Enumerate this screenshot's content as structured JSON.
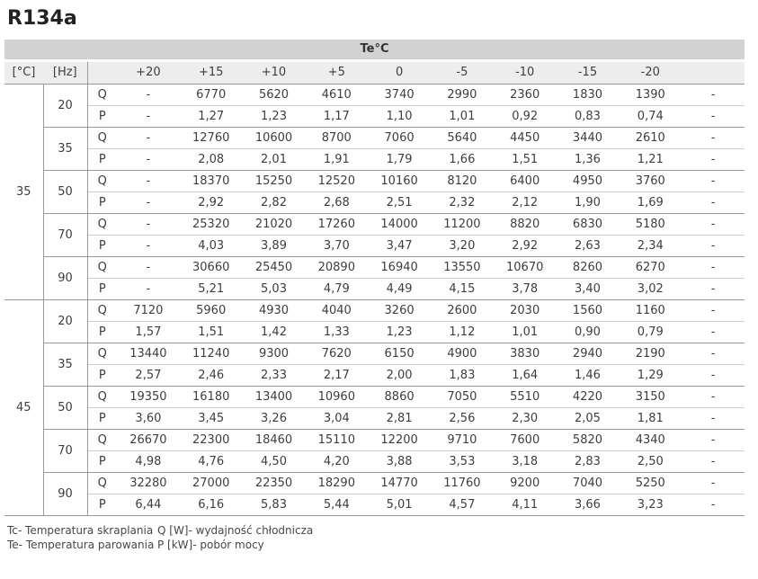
{
  "title": "R134a",
  "chart_data": {
    "type": "table",
    "title": "R134a",
    "col_group_header": "Te°C",
    "corner_headers": [
      "[°C]",
      "[Hz]"
    ],
    "te_columns": [
      "+20",
      "+15",
      "+10",
      "+5",
      "0",
      "-5",
      "-10",
      "-15",
      "-20",
      ""
    ],
    "row_metric_labels": {
      "q": "Q",
      "p": "P"
    },
    "sections": [
      {
        "tc": "35",
        "groups": [
          {
            "hz": "20",
            "q": [
              "-",
              "6770",
              "5620",
              "4610",
              "3740",
              "2990",
              "2360",
              "1830",
              "1390",
              "-"
            ],
            "p": [
              "-",
              "1,27",
              "1,23",
              "1,17",
              "1,10",
              "1,01",
              "0,92",
              "0,83",
              "0,74",
              "-"
            ]
          },
          {
            "hz": "35",
            "q": [
              "-",
              "12760",
              "10600",
              "8700",
              "7060",
              "5640",
              "4450",
              "3440",
              "2610",
              "-"
            ],
            "p": [
              "-",
              "2,08",
              "2,01",
              "1,91",
              "1,79",
              "1,66",
              "1,51",
              "1,36",
              "1,21",
              "-"
            ]
          },
          {
            "hz": "50",
            "q": [
              "-",
              "18370",
              "15250",
              "12520",
              "10160",
              "8120",
              "6400",
              "4950",
              "3760",
              "-"
            ],
            "p": [
              "-",
              "2,92",
              "2,82",
              "2,68",
              "2,51",
              "2,32",
              "2,12",
              "1,90",
              "1,69",
              "-"
            ]
          },
          {
            "hz": "70",
            "q": [
              "-",
              "25320",
              "21020",
              "17260",
              "14000",
              "11200",
              "8820",
              "6830",
              "5180",
              "-"
            ],
            "p": [
              "-",
              "4,03",
              "3,89",
              "3,70",
              "3,47",
              "3,20",
              "2,92",
              "2,63",
              "2,34",
              "-"
            ]
          },
          {
            "hz": "90",
            "q": [
              "-",
              "30660",
              "25450",
              "20890",
              "16940",
              "13550",
              "10670",
              "8260",
              "6270",
              "-"
            ],
            "p": [
              "-",
              "5,21",
              "5,03",
              "4,79",
              "4,49",
              "4,15",
              "3,78",
              "3,40",
              "3,02",
              "-"
            ]
          }
        ]
      },
      {
        "tc": "45",
        "groups": [
          {
            "hz": "20",
            "q": [
              "7120",
              "5960",
              "4930",
              "4040",
              "3260",
              "2600",
              "2030",
              "1560",
              "1160",
              "-"
            ],
            "p": [
              "1,57",
              "1,51",
              "1,42",
              "1,33",
              "1,23",
              "1,12",
              "1,01",
              "0,90",
              "0,79",
              "-"
            ]
          },
          {
            "hz": "35",
            "q": [
              "13440",
              "11240",
              "9300",
              "7620",
              "6150",
              "4900",
              "3830",
              "2940",
              "2190",
              "-"
            ],
            "p": [
              "2,57",
              "2,46",
              "2,33",
              "2,17",
              "2,00",
              "1,83",
              "1,64",
              "1,46",
              "1,29",
              "-"
            ]
          },
          {
            "hz": "50",
            "q": [
              "19350",
              "16180",
              "13400",
              "10960",
              "8860",
              "7050",
              "5510",
              "4220",
              "3150",
              "-"
            ],
            "p": [
              "3,60",
              "3,45",
              "3,26",
              "3,04",
              "2,81",
              "2,56",
              "2,30",
              "2,05",
              "1,81",
              "-"
            ]
          },
          {
            "hz": "70",
            "q": [
              "26670",
              "22300",
              "18460",
              "15110",
              "12200",
              "9710",
              "7600",
              "5820",
              "4340",
              "-"
            ],
            "p": [
              "4,98",
              "4,76",
              "4,50",
              "4,20",
              "3,88",
              "3,53",
              "3,18",
              "2,83",
              "2,50",
              "-"
            ]
          },
          {
            "hz": "90",
            "q": [
              "32280",
              "27000",
              "22350",
              "18290",
              "14770",
              "11760",
              "9200",
              "7040",
              "5250",
              "-"
            ],
            "p": [
              "6,44",
              "6,16",
              "5,83",
              "5,44",
              "5,01",
              "4,57",
              "4,11",
              "3,66",
              "3,23",
              "-"
            ]
          }
        ]
      }
    ]
  },
  "legend": {
    "tc": "Tc- Temperatura skraplania",
    "te": "Te- Temperatura parowania",
    "q": "Q [W]- wydajność chłodnicza",
    "p": "P [kW]- pobór mocy"
  },
  "colors": {
    "header_band": "#d2d2d2",
    "subheader_band": "#ededed",
    "border_dark": "#999999",
    "border_light": "#cccccc",
    "text": "#3d3d3d"
  }
}
